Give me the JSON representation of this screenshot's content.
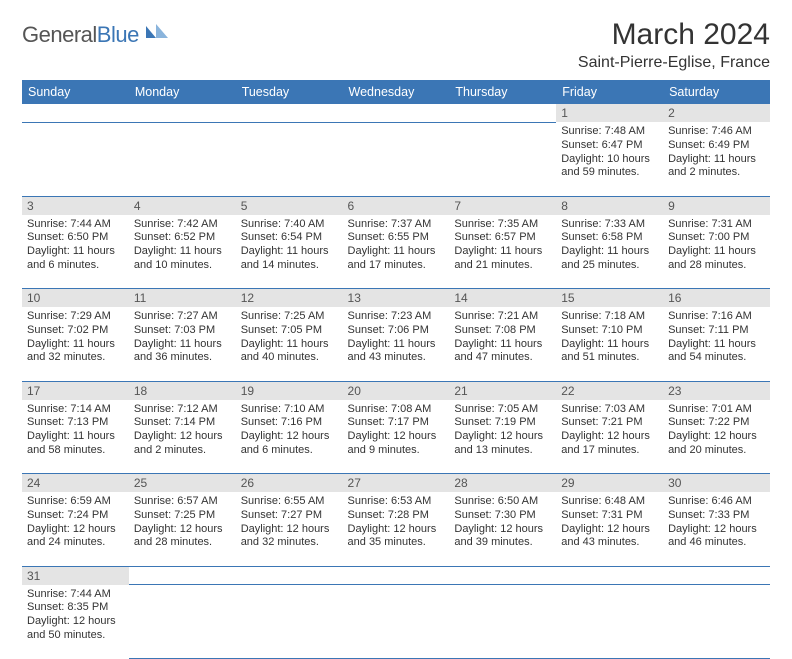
{
  "logo": {
    "text1": "General",
    "text2": "Blue"
  },
  "month": "March 2024",
  "location": "Saint-Pierre-Eglise, France",
  "weekdays": [
    "Sunday",
    "Monday",
    "Tuesday",
    "Wednesday",
    "Thursday",
    "Friday",
    "Saturday"
  ],
  "colors": {
    "header_bg": "#3b76b5",
    "header_text": "#ffffff",
    "daynum_bg": "#e4e4e4",
    "row_divider": "#3b76b5"
  },
  "weeks": [
    [
      null,
      null,
      null,
      null,
      null,
      {
        "d": "1",
        "sr": "7:48 AM",
        "ss": "6:47 PM",
        "dl": "10 hours and 59 minutes."
      },
      {
        "d": "2",
        "sr": "7:46 AM",
        "ss": "6:49 PM",
        "dl": "11 hours and 2 minutes."
      }
    ],
    [
      {
        "d": "3",
        "sr": "7:44 AM",
        "ss": "6:50 PM",
        "dl": "11 hours and 6 minutes."
      },
      {
        "d": "4",
        "sr": "7:42 AM",
        "ss": "6:52 PM",
        "dl": "11 hours and 10 minutes."
      },
      {
        "d": "5",
        "sr": "7:40 AM",
        "ss": "6:54 PM",
        "dl": "11 hours and 14 minutes."
      },
      {
        "d": "6",
        "sr": "7:37 AM",
        "ss": "6:55 PM",
        "dl": "11 hours and 17 minutes."
      },
      {
        "d": "7",
        "sr": "7:35 AM",
        "ss": "6:57 PM",
        "dl": "11 hours and 21 minutes."
      },
      {
        "d": "8",
        "sr": "7:33 AM",
        "ss": "6:58 PM",
        "dl": "11 hours and 25 minutes."
      },
      {
        "d": "9",
        "sr": "7:31 AM",
        "ss": "7:00 PM",
        "dl": "11 hours and 28 minutes."
      }
    ],
    [
      {
        "d": "10",
        "sr": "7:29 AM",
        "ss": "7:02 PM",
        "dl": "11 hours and 32 minutes."
      },
      {
        "d": "11",
        "sr": "7:27 AM",
        "ss": "7:03 PM",
        "dl": "11 hours and 36 minutes."
      },
      {
        "d": "12",
        "sr": "7:25 AM",
        "ss": "7:05 PM",
        "dl": "11 hours and 40 minutes."
      },
      {
        "d": "13",
        "sr": "7:23 AM",
        "ss": "7:06 PM",
        "dl": "11 hours and 43 minutes."
      },
      {
        "d": "14",
        "sr": "7:21 AM",
        "ss": "7:08 PM",
        "dl": "11 hours and 47 minutes."
      },
      {
        "d": "15",
        "sr": "7:18 AM",
        "ss": "7:10 PM",
        "dl": "11 hours and 51 minutes."
      },
      {
        "d": "16",
        "sr": "7:16 AM",
        "ss": "7:11 PM",
        "dl": "11 hours and 54 minutes."
      }
    ],
    [
      {
        "d": "17",
        "sr": "7:14 AM",
        "ss": "7:13 PM",
        "dl": "11 hours and 58 minutes."
      },
      {
        "d": "18",
        "sr": "7:12 AM",
        "ss": "7:14 PM",
        "dl": "12 hours and 2 minutes."
      },
      {
        "d": "19",
        "sr": "7:10 AM",
        "ss": "7:16 PM",
        "dl": "12 hours and 6 minutes."
      },
      {
        "d": "20",
        "sr": "7:08 AM",
        "ss": "7:17 PM",
        "dl": "12 hours and 9 minutes."
      },
      {
        "d": "21",
        "sr": "7:05 AM",
        "ss": "7:19 PM",
        "dl": "12 hours and 13 minutes."
      },
      {
        "d": "22",
        "sr": "7:03 AM",
        "ss": "7:21 PM",
        "dl": "12 hours and 17 minutes."
      },
      {
        "d": "23",
        "sr": "7:01 AM",
        "ss": "7:22 PM",
        "dl": "12 hours and 20 minutes."
      }
    ],
    [
      {
        "d": "24",
        "sr": "6:59 AM",
        "ss": "7:24 PM",
        "dl": "12 hours and 24 minutes."
      },
      {
        "d": "25",
        "sr": "6:57 AM",
        "ss": "7:25 PM",
        "dl": "12 hours and 28 minutes."
      },
      {
        "d": "26",
        "sr": "6:55 AM",
        "ss": "7:27 PM",
        "dl": "12 hours and 32 minutes."
      },
      {
        "d": "27",
        "sr": "6:53 AM",
        "ss": "7:28 PM",
        "dl": "12 hours and 35 minutes."
      },
      {
        "d": "28",
        "sr": "6:50 AM",
        "ss": "7:30 PM",
        "dl": "12 hours and 39 minutes."
      },
      {
        "d": "29",
        "sr": "6:48 AM",
        "ss": "7:31 PM",
        "dl": "12 hours and 43 minutes."
      },
      {
        "d": "30",
        "sr": "6:46 AM",
        "ss": "7:33 PM",
        "dl": "12 hours and 46 minutes."
      }
    ],
    [
      {
        "d": "31",
        "sr": "7:44 AM",
        "ss": "8:35 PM",
        "dl": "12 hours and 50 minutes."
      },
      null,
      null,
      null,
      null,
      null,
      null
    ]
  ],
  "labels": {
    "sunrise": "Sunrise: ",
    "sunset": "Sunset: ",
    "daylight": "Daylight: "
  }
}
